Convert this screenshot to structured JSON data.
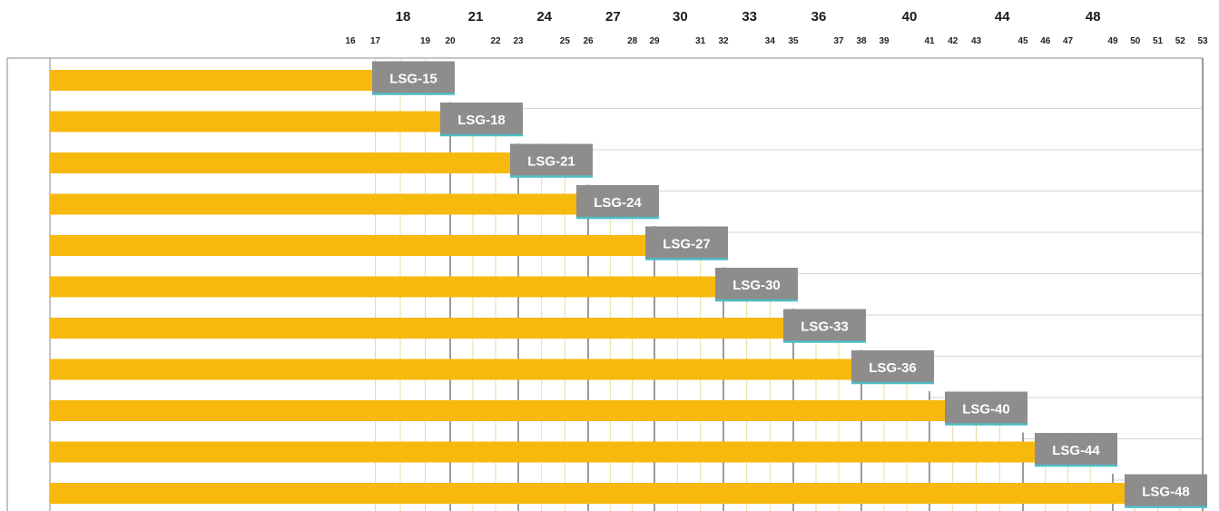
{
  "chart_data": {
    "type": "bar",
    "orientation": "horizontal",
    "title": "",
    "xlabel": "",
    "ylabel": "",
    "x_range": [
      16,
      53
    ],
    "group_labels": [
      {
        "label": "18",
        "value": 18
      },
      {
        "label": "21",
        "value": 21
      },
      {
        "label": "24",
        "value": 24
      },
      {
        "label": "27",
        "value": 27
      },
      {
        "label": "30",
        "value": 30
      },
      {
        "label": "33",
        "value": 33
      },
      {
        "label": "36",
        "value": 36
      },
      {
        "label": "40",
        "value": 40
      },
      {
        "label": "44",
        "value": 44
      },
      {
        "label": "48",
        "value": 48
      }
    ],
    "tick_labels": [
      "16",
      "17",
      "19",
      "20",
      "22",
      "23",
      "25",
      "26",
      "28",
      "29",
      "31",
      "32",
      "34",
      "35",
      "37",
      "38",
      "39",
      "41",
      "42",
      "43",
      "45",
      "46",
      "47",
      "49",
      "50",
      "51",
      "52",
      "53"
    ],
    "boundaries": [
      20,
      23,
      26,
      29,
      32,
      35,
      38,
      41,
      45,
      49
    ],
    "minor_lines": [
      17,
      18,
      19,
      21,
      22,
      24,
      25,
      27,
      28,
      30,
      31,
      33,
      34,
      36,
      37,
      39,
      40,
      42,
      43,
      44,
      46,
      47,
      48,
      50,
      51,
      52
    ],
    "series": [
      {
        "label": "LSG-15",
        "range": [
          16,
          20
        ]
      },
      {
        "label": "LSG-18",
        "range": [
          19,
          23
        ]
      },
      {
        "label": "LSG-21",
        "range": [
          22,
          26
        ]
      },
      {
        "label": "LSG-24",
        "range": [
          25,
          29
        ]
      },
      {
        "label": "LSG-27",
        "range": [
          28,
          32
        ]
      },
      {
        "label": "LSG-30",
        "range": [
          31,
          35
        ]
      },
      {
        "label": "LSG-33",
        "range": [
          34,
          38
        ]
      },
      {
        "label": "LSG-36",
        "range": [
          37,
          41
        ]
      },
      {
        "label": "LSG-40",
        "range": [
          40,
          45
        ]
      },
      {
        "label": "LSG-44",
        "range": [
          44,
          49
        ]
      },
      {
        "label": "LSG-48",
        "range": [
          48,
          53
        ]
      }
    ],
    "grid": true,
    "colors": {
      "bar": "#f7b90e",
      "tag": "#8f8c8c",
      "tag_edge": "#4fbcc6",
      "boundary_line": "#6f6f6f",
      "minor_line": "#e7dc9a",
      "row_line": "#d6d6d6",
      "frame": "#8a8a8a"
    }
  }
}
